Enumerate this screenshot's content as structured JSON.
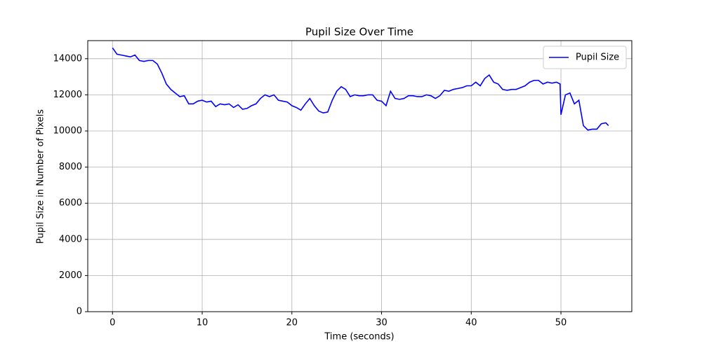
{
  "chart_data": {
    "type": "line",
    "title": "Pupil Size Over Time",
    "xlabel": "Time (seconds)",
    "ylabel": "Pupil Size in Number of Pixels",
    "x": [
      0,
      0.5,
      1,
      1.5,
      2,
      2.5,
      3,
      3.5,
      4,
      4.5,
      5,
      5.5,
      6,
      6.5,
      7,
      7.5,
      8,
      8.5,
      9,
      9.5,
      10,
      10.5,
      11,
      11.5,
      12,
      12.5,
      13,
      13.5,
      14,
      14.5,
      15,
      15.5,
      16,
      16.5,
      17,
      17.5,
      18,
      18.5,
      19,
      19.5,
      20,
      20.5,
      21,
      21.5,
      22,
      22.5,
      23,
      23.5,
      24,
      24.5,
      25,
      25.5,
      26,
      26.5,
      27,
      27.5,
      28,
      28.5,
      29,
      29.5,
      30,
      30.5,
      31,
      31.5,
      32,
      32.5,
      33,
      33.5,
      34,
      34.5,
      35,
      35.5,
      36,
      36.5,
      37,
      37.5,
      38,
      38.5,
      39,
      39.5,
      40,
      40.5,
      41,
      41.5,
      42,
      42.5,
      43,
      43.5,
      44,
      44.5,
      45,
      45.5,
      46,
      46.5,
      47,
      47.5,
      48,
      48.5,
      49,
      49.5,
      49.9,
      50,
      50.5,
      51,
      51.5,
      52,
      52.5,
      53,
      53.5,
      54,
      54.5,
      55,
      55.3
    ],
    "series": [
      {
        "name": "Pupil Size",
        "color": "#0000ff",
        "values": [
          14600,
          14250,
          14200,
          14150,
          14100,
          14200,
          13900,
          13850,
          13900,
          13900,
          13700,
          13200,
          12600,
          12300,
          12100,
          11900,
          11950,
          11500,
          11500,
          11650,
          11700,
          11600,
          11650,
          11350,
          11500,
          11450,
          11500,
          11300,
          11450,
          11200,
          11250,
          11400,
          11500,
          11800,
          12000,
          11900,
          12000,
          11700,
          11650,
          11600,
          11400,
          11300,
          11150,
          11500,
          11800,
          11400,
          11100,
          11000,
          11050,
          11700,
          12200,
          12450,
          12300,
          11900,
          12000,
          11950,
          11950,
          12000,
          12000,
          11700,
          11650,
          11400,
          12200,
          11800,
          11750,
          11800,
          11950,
          11950,
          11900,
          11900,
          12000,
          11950,
          11800,
          11950,
          12250,
          12200,
          12300,
          12350,
          12400,
          12500,
          12500,
          12700,
          12500,
          12900,
          13100,
          12700,
          12600,
          12300,
          12250,
          12300,
          12300,
          12400,
          12500,
          12700,
          12800,
          12800,
          12600,
          12700,
          12650,
          12700,
          12600,
          10900,
          12000,
          12100,
          11500,
          11700,
          10300,
          10050,
          10100,
          10100,
          10400,
          10450,
          10300
        ]
      }
    ],
    "xlim": [
      -2.76,
      57.9
    ],
    "ylim": [
      0,
      15000
    ],
    "xticks": [
      0,
      10,
      20,
      30,
      40,
      50
    ],
    "yticks": [
      0,
      2000,
      4000,
      6000,
      8000,
      10000,
      12000,
      14000
    ],
    "grid": true,
    "legend": "upper right"
  }
}
